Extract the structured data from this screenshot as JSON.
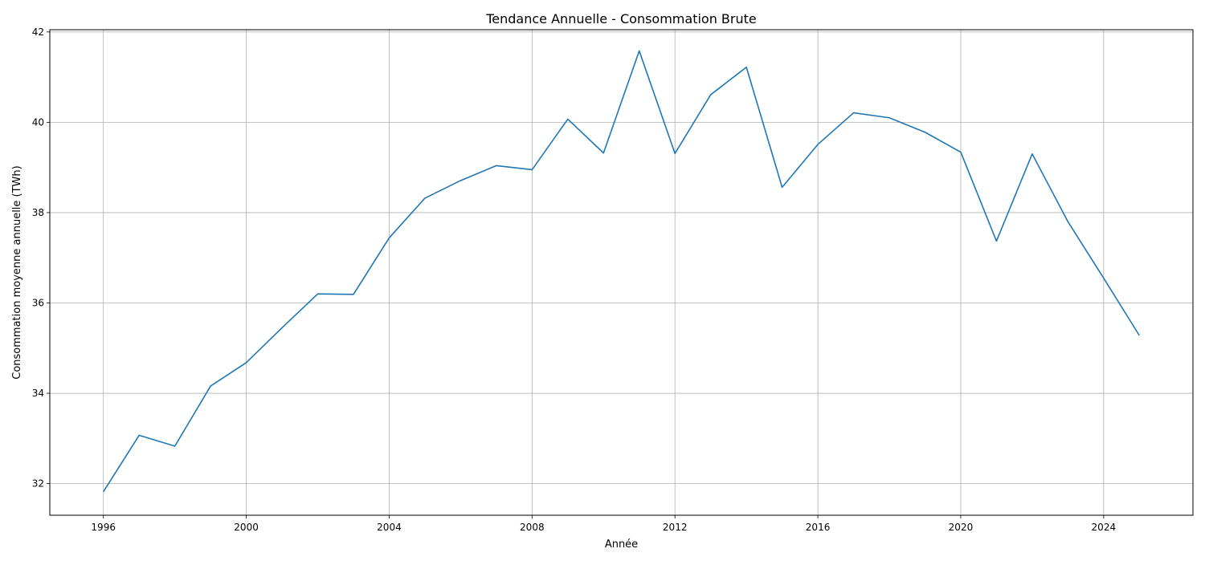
{
  "chart_data": {
    "type": "line",
    "title": "Tendance Annuelle - Consommation Brute",
    "xlabel": "Année",
    "ylabel": "Consommation moyenne annuelle (TWh)",
    "xlim": [
      1994.5,
      2026.5
    ],
    "ylim": [
      31.3,
      42.05
    ],
    "x_ticks": [
      1996,
      2000,
      2004,
      2008,
      2012,
      2016,
      2020,
      2024
    ],
    "y_ticks": [
      32,
      34,
      36,
      38,
      40,
      42
    ],
    "grid": true,
    "series": [
      {
        "color": "#1f77b4",
        "x": [
          1996,
          1997,
          1998,
          1999,
          2000,
          2001,
          2002,
          2003,
          2004,
          2005,
          2006,
          2007,
          2008,
          2009,
          2010,
          2011,
          2012,
          2013,
          2014,
          2015,
          2016,
          2017,
          2018,
          2019,
          2020,
          2021,
          2022,
          2023,
          2024,
          2025
        ],
        "y": [
          31.82,
          33.07,
          32.83,
          34.16,
          34.68,
          35.45,
          36.2,
          36.19,
          37.44,
          38.32,
          38.71,
          39.04,
          38.95,
          40.07,
          39.32,
          41.58,
          39.31,
          40.61,
          41.22,
          38.56,
          39.51,
          40.21,
          40.1,
          39.78,
          39.34,
          37.37,
          39.3,
          37.8,
          36.55,
          35.28
        ]
      }
    ]
  }
}
